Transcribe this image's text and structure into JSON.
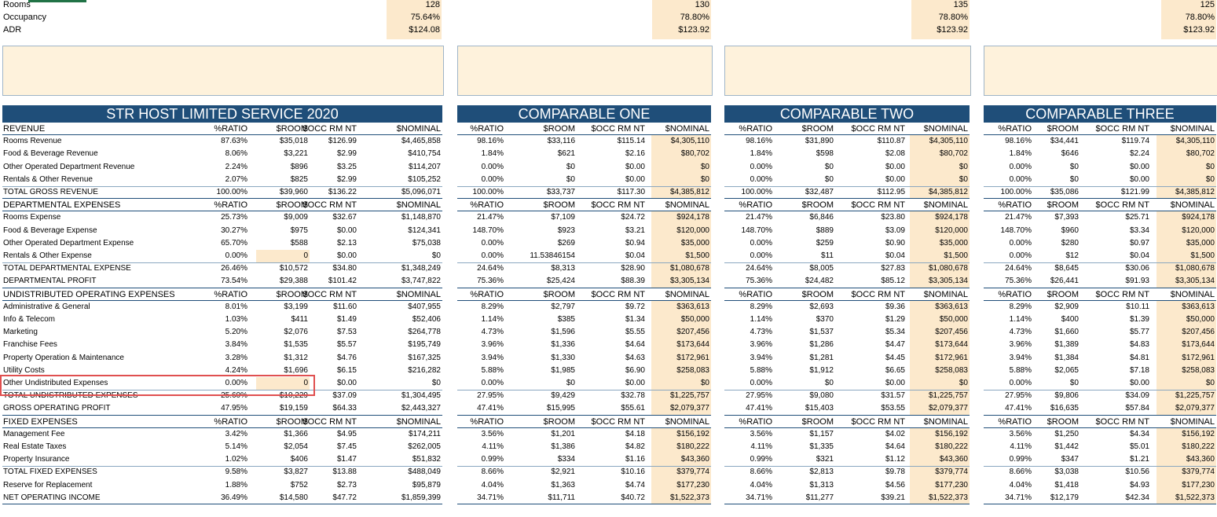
{
  "top_stats": {
    "labels": [
      "Rooms",
      "Occupancy",
      "ADR"
    ],
    "str": [
      "128",
      "75.64%",
      "$124.08"
    ],
    "comp1": [
      "130",
      "78.80%",
      "$123.92"
    ],
    "comp2": [
      "135",
      "78.80%",
      "$123.92"
    ],
    "comp3": [
      "125",
      "78.80%",
      "$123.92"
    ]
  },
  "titles": {
    "str": "STR HOST LIMITED SERVICE 2020",
    "comp1": "COMPARABLE ONE",
    "comp2": "COMPARABLE TWO",
    "comp3": "COMPARABLE THREE"
  },
  "column_headers": [
    "%RATIO",
    "$ROOM",
    "$OCC RM NT",
    "$NOMINAL"
  ],
  "rows": [
    {
      "label": "REVENUE",
      "type": "section",
      "str": [
        "%RATIO",
        "$ROOM",
        "$OCC RM NT",
        "$NOMINAL"
      ],
      "c1": [
        "%RATIO",
        "$ROOM",
        "$OCC RM NT",
        "$NOMINAL"
      ],
      "c2": [
        "%RATIO",
        "$ROOM",
        "$OCC RM NT",
        "$NOMINAL"
      ],
      "c3": [
        "%RATIO",
        "$ROOM",
        "$OCC RM NT",
        "$NOMINAL"
      ]
    },
    {
      "label": "Rooms Revenue",
      "str": [
        "87.63%",
        "$35,018",
        "$126.99",
        "$4,465,858"
      ],
      "c1": [
        "98.16%",
        "$33,116",
        "$115.14",
        "$4,305,110"
      ],
      "c2": [
        "98.16%",
        "$31,890",
        "$110.87",
        "$4,305,110"
      ],
      "c3": [
        "98.16%",
        "$34,441",
        "$119.74",
        "$4,305,110"
      ]
    },
    {
      "label": "Food & Beverage Revenue",
      "str": [
        "8.06%",
        "$3,221",
        "$2.99",
        "$410,754"
      ],
      "c1": [
        "1.84%",
        "$621",
        "$2.16",
        "$80,702"
      ],
      "c2": [
        "1.84%",
        "$598",
        "$2.08",
        "$80,702"
      ],
      "c3": [
        "1.84%",
        "$646",
        "$2.24",
        "$80,702"
      ]
    },
    {
      "label": "Other Operated Department Revenue",
      "str": [
        "2.24%",
        "$896",
        "$3.25",
        "$114,207"
      ],
      "c1": [
        "0.00%",
        "$0",
        "$0.00",
        "$0"
      ],
      "c2": [
        "0.00%",
        "$0",
        "$0.00",
        "$0"
      ],
      "c3": [
        "0.00%",
        "$0",
        "$0.00",
        "$0"
      ]
    },
    {
      "label": "Rentals & Other Revenue",
      "str": [
        "2.07%",
        "$825",
        "$2.99",
        "$105,252"
      ],
      "c1": [
        "0.00%",
        "$0",
        "$0.00",
        "$0"
      ],
      "c2": [
        "0.00%",
        "$0",
        "$0.00",
        "$0"
      ],
      "c3": [
        "0.00%",
        "$0",
        "$0.00",
        "$0"
      ]
    },
    {
      "label": "TOTAL GROSS REVENUE",
      "type": "total",
      "str": [
        "100.00%",
        "$39,960",
        "$136.22",
        "$5,096,071"
      ],
      "c1": [
        "100.00%",
        "$33,737",
        "$117.30",
        "$4,385,812"
      ],
      "c2": [
        "100.00%",
        "$32,487",
        "$112.95",
        "$4,385,812"
      ],
      "c3": [
        "100.00%",
        "$35,086",
        "$121.99",
        "$4,385,812"
      ]
    },
    {
      "label": "DEPARTMENTAL EXPENSES",
      "type": "section",
      "str": [
        "%RATIO",
        "$ROOM",
        "$OCC RM NT",
        "$NOMINAL"
      ],
      "c1": [
        "%RATIO",
        "$ROOM",
        "$OCC RM NT",
        "$NOMINAL"
      ],
      "c2": [
        "%RATIO",
        "$ROOM",
        "$OCC RM NT",
        "$NOMINAL"
      ],
      "c3": [
        "%RATIO",
        "$ROOM",
        "$OCC RM NT",
        "$NOMINAL"
      ]
    },
    {
      "label": "Rooms Expense",
      "str": [
        "25.73%",
        "$9,009",
        "$32.67",
        "$1,148,870"
      ],
      "c1": [
        "21.47%",
        "$7,109",
        "$24.72",
        "$924,178"
      ],
      "c2": [
        "21.47%",
        "$6,846",
        "$23.80",
        "$924,178"
      ],
      "c3": [
        "21.47%",
        "$7,393",
        "$25.71",
        "$924,178"
      ]
    },
    {
      "label": "Food & Beverage Expense",
      "str": [
        "30.27%",
        "$975",
        "$0.00",
        "$124,341"
      ],
      "c1": [
        "148.70%",
        "$923",
        "$3.21",
        "$120,000"
      ],
      "c2": [
        "148.70%",
        "$889",
        "$3.09",
        "$120,000"
      ],
      "c3": [
        "148.70%",
        "$960",
        "$3.34",
        "$120,000"
      ]
    },
    {
      "label": "Other Operated Department Expense",
      "str": [
        "65.70%",
        "$588",
        "$2.13",
        "$75,038"
      ],
      "c1": [
        "0.00%",
        "$269",
        "$0.94",
        "$35,000"
      ],
      "c2": [
        "0.00%",
        "$259",
        "$0.90",
        "$35,000"
      ],
      "c3": [
        "0.00%",
        "$280",
        "$0.97",
        "$35,000"
      ]
    },
    {
      "label": "Rentals & Other Expense",
      "str": [
        "0.00%",
        "0",
        "$0.00",
        "$0"
      ],
      "c1": [
        "0.00%",
        "11.53846154",
        "$0.04",
        "$1,500"
      ],
      "c2": [
        "0.00%",
        "$11",
        "$0.04",
        "$1,500"
      ],
      "c3": [
        "0.00%",
        "$12",
        "$0.04",
        "$1,500"
      ]
    },
    {
      "label": "TOTAL DEPARTMENTAL EXPENSE",
      "str": [
        "26.46%",
        "$10,572",
        "$34.80",
        "$1,348,249"
      ],
      "c1": [
        "24.64%",
        "$8,313",
        "$28.90",
        "$1,080,678"
      ],
      "c2": [
        "24.64%",
        "$8,005",
        "$27.83",
        "$1,080,678"
      ],
      "c3": [
        "24.64%",
        "$8,645",
        "$30.06",
        "$1,080,678"
      ]
    },
    {
      "label": "DEPARTMENTAL PROFIT",
      "type": "total",
      "str": [
        "73.54%",
        "$29,388",
        "$101.42",
        "$3,747,822"
      ],
      "c1": [
        "75.36%",
        "$25,424",
        "$88.39",
        "$3,305,134"
      ],
      "c2": [
        "75.36%",
        "$24,482",
        "$85.12",
        "$3,305,134"
      ],
      "c3": [
        "75.36%",
        "$26,441",
        "$91.93",
        "$3,305,134"
      ]
    },
    {
      "label": "UNDISTRIBUTED OPERATING EXPENSES",
      "type": "section",
      "str": [
        "%RATIO",
        "$ROOM",
        "$OCC RM NT",
        "$NOMINAL"
      ],
      "c1": [
        "%RATIO",
        "$ROOM",
        "$OCC RM NT",
        "$NOMINAL"
      ],
      "c2": [
        "%RATIO",
        "$ROOM",
        "$OCC RM NT",
        "$NOMINAL"
      ],
      "c3": [
        "%RATIO",
        "$ROOM",
        "$OCC RM NT",
        "$NOMINAL"
      ]
    },
    {
      "label": "Administrative & General",
      "str": [
        "8.01%",
        "$3,199",
        "$11.60",
        "$407,955"
      ],
      "c1": [
        "8.29%",
        "$2,797",
        "$9.72",
        "$363,613"
      ],
      "c2": [
        "8.29%",
        "$2,693",
        "$9.36",
        "$363,613"
      ],
      "c3": [
        "8.29%",
        "$2,909",
        "$10.11",
        "$363,613"
      ]
    },
    {
      "label": "Info & Telecom",
      "str": [
        "1.03%",
        "$411",
        "$1.49",
        "$52,406"
      ],
      "c1": [
        "1.14%",
        "$385",
        "$1.34",
        "$50,000"
      ],
      "c2": [
        "1.14%",
        "$370",
        "$1.29",
        "$50,000"
      ],
      "c3": [
        "1.14%",
        "$400",
        "$1.39",
        "$50,000"
      ]
    },
    {
      "label": "Marketing",
      "str": [
        "5.20%",
        "$2,076",
        "$7.53",
        "$264,778"
      ],
      "c1": [
        "4.73%",
        "$1,596",
        "$5.55",
        "$207,456"
      ],
      "c2": [
        "4.73%",
        "$1,537",
        "$5.34",
        "$207,456"
      ],
      "c3": [
        "4.73%",
        "$1,660",
        "$5.77",
        "$207,456"
      ]
    },
    {
      "label": "Franchise Fees",
      "str": [
        "3.84%",
        "$1,535",
        "$5.57",
        "$195,749"
      ],
      "c1": [
        "3.96%",
        "$1,336",
        "$4.64",
        "$173,644"
      ],
      "c2": [
        "3.96%",
        "$1,286",
        "$4.47",
        "$173,644"
      ],
      "c3": [
        "3.96%",
        "$1,389",
        "$4.83",
        "$173,644"
      ]
    },
    {
      "label": "Property Operation & Maintenance",
      "str": [
        "3.28%",
        "$1,312",
        "$4.76",
        "$167,325"
      ],
      "c1": [
        "3.94%",
        "$1,330",
        "$4.63",
        "$172,961"
      ],
      "c2": [
        "3.94%",
        "$1,281",
        "$4.45",
        "$172,961"
      ],
      "c3": [
        "3.94%",
        "$1,384",
        "$4.81",
        "$172,961"
      ]
    },
    {
      "label": "Utility Costs",
      "str": [
        "4.24%",
        "$1,696",
        "$6.15",
        "$216,282"
      ],
      "c1": [
        "5.88%",
        "$1,985",
        "$6.90",
        "$258,083"
      ],
      "c2": [
        "5.88%",
        "$1,912",
        "$6.65",
        "$258,083"
      ],
      "c3": [
        "5.88%",
        "$2,065",
        "$7.18",
        "$258,083"
      ]
    },
    {
      "label": "Other Undistributed Expenses",
      "str": [
        "0.00%",
        "0",
        "$0.00",
        "$0"
      ],
      "c1": [
        "0.00%",
        "$0",
        "$0.00",
        "$0"
      ],
      "c2": [
        "0.00%",
        "$0",
        "$0.00",
        "$0"
      ],
      "c3": [
        "0.00%",
        "$0",
        "$0.00",
        "$0"
      ]
    },
    {
      "label": "TOTAL UNDISTRIBUTED EXPENSES",
      "str": [
        "25.60%",
        "$10,229",
        "$37.09",
        "$1,304,495"
      ],
      "c1": [
        "27.95%",
        "$9,429",
        "$32.78",
        "$1,225,757"
      ],
      "c2": [
        "27.95%",
        "$9,080",
        "$31.57",
        "$1,225,757"
      ],
      "c3": [
        "27.95%",
        "$9,806",
        "$34.09",
        "$1,225,757"
      ]
    },
    {
      "label": "GROSS OPERATING PROFIT",
      "type": "total",
      "str": [
        "47.95%",
        "$19,159",
        "$64.33",
        "$2,443,327"
      ],
      "c1": [
        "47.41%",
        "$15,995",
        "$55.61",
        "$2,079,377"
      ],
      "c2": [
        "47.41%",
        "$15,403",
        "$53.55",
        "$2,079,377"
      ],
      "c3": [
        "47.41%",
        "$16,635",
        "$57.84",
        "$2,079,377"
      ]
    },
    {
      "label": "FIXED EXPENSES",
      "type": "section",
      "str": [
        "%RATIO",
        "$ROOM",
        "$OCC RM NT",
        "$NOMINAL"
      ],
      "c1": [
        "%RATIO",
        "$ROOM",
        "$OCC RM NT",
        "$NOMINAL"
      ],
      "c2": [
        "%RATIO",
        "$ROOM",
        "$OCC RM NT",
        "$NOMINAL"
      ],
      "c3": [
        "%RATIO",
        "$ROOM",
        "$OCC RM NT",
        "$NOMINAL"
      ]
    },
    {
      "label": "Management Fee",
      "str": [
        "3.42%",
        "$1,366",
        "$4.95",
        "$174,211"
      ],
      "c1": [
        "3.56%",
        "$1,201",
        "$4.18",
        "$156,192"
      ],
      "c2": [
        "3.56%",
        "$1,157",
        "$4.02",
        "$156,192"
      ],
      "c3": [
        "3.56%",
        "$1,250",
        "$4.34",
        "$156,192"
      ]
    },
    {
      "label": "Real Estate Taxes",
      "str": [
        "5.14%",
        "$2,054",
        "$7.45",
        "$262,005"
      ],
      "c1": [
        "4.11%",
        "$1,386",
        "$4.82",
        "$180,222"
      ],
      "c2": [
        "4.11%",
        "$1,335",
        "$4.64",
        "$180,222"
      ],
      "c3": [
        "4.11%",
        "$1,442",
        "$5.01",
        "$180,222"
      ]
    },
    {
      "label": "Property Insurance",
      "str": [
        "1.02%",
        "$406",
        "$1.47",
        "$51,832"
      ],
      "c1": [
        "0.99%",
        "$334",
        "$1.16",
        "$43,360"
      ],
      "c2": [
        "0.99%",
        "$321",
        "$1.12",
        "$43,360"
      ],
      "c3": [
        "0.99%",
        "$347",
        "$1.21",
        "$43,360"
      ]
    },
    {
      "label": "TOTAL FIXED EXPENSES",
      "str": [
        "9.58%",
        "$3,827",
        "$13.88",
        "$488,049"
      ],
      "c1": [
        "8.66%",
        "$2,921",
        "$10.16",
        "$379,774"
      ],
      "c2": [
        "8.66%",
        "$2,813",
        "$9.78",
        "$379,774"
      ],
      "c3": [
        "8.66%",
        "$3,038",
        "$10.56",
        "$379,774"
      ]
    },
    {
      "label": "Reserve for Replacement",
      "str": [
        "1.88%",
        "$752",
        "$2.73",
        "$95,879"
      ],
      "c1": [
        "4.04%",
        "$1,363",
        "$4.74",
        "$177,230"
      ],
      "c2": [
        "4.04%",
        "$1,313",
        "$4.56",
        "$177,230"
      ],
      "c3": [
        "4.04%",
        "$1,418",
        "$4.93",
        "$177,230"
      ]
    },
    {
      "label": "NET OPERATING INCOME",
      "type": "total",
      "str": [
        "36.49%",
        "$14,580",
        "$47.72",
        "$1,859,399"
      ],
      "c1": [
        "34.71%",
        "$11,711",
        "$40.72",
        "$1,522,373"
      ],
      "c2": [
        "34.71%",
        "$11,277",
        "$39.21",
        "$1,522,373"
      ],
      "c3": [
        "34.71%",
        "$12,179",
        "$42.34",
        "$1,522,373"
      ]
    }
  ],
  "colors": {
    "title_bg": "#1f4e79",
    "highlight": "#fce9cc",
    "note_box": "#fef2dc",
    "selection": "#e05050"
  }
}
